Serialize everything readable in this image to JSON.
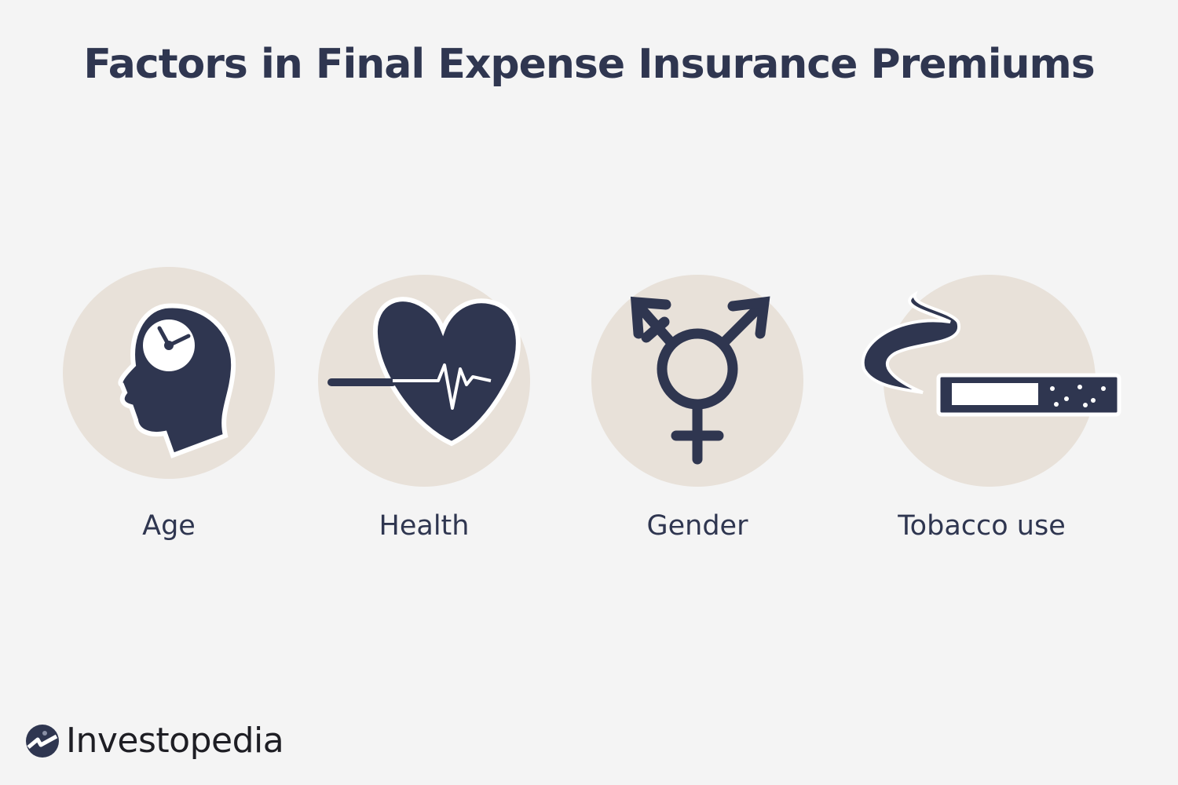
{
  "title": "Factors in Final Expense Insurance Premiums",
  "factors": [
    {
      "label": "Age",
      "icon": "head-clock-icon"
    },
    {
      "label": "Health",
      "icon": "heart-heartbeat-icon"
    },
    {
      "label": "Gender",
      "icon": "transgender-symbol-icon"
    },
    {
      "label": "Tobacco use",
      "icon": "cigarette-smoke-icon"
    }
  ],
  "logo": {
    "text": "Investopedia"
  },
  "colors": {
    "primary": "#2f3650",
    "background": "#f4f4f4",
    "circle": "#e8e1d9"
  }
}
